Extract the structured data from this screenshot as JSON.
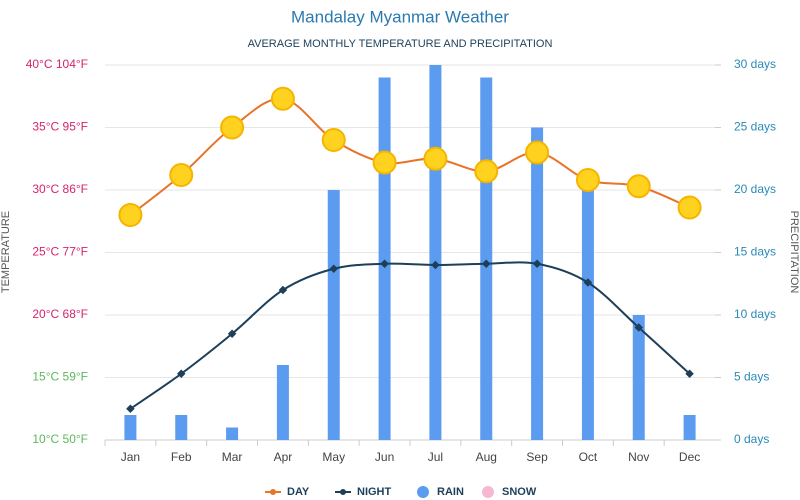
{
  "chart_data": {
    "type": "weather",
    "title": "Mandalay Myanmar Weather",
    "subtitle": "AVERAGE MONTHLY TEMPERATURE AND PRECIPITATION",
    "y_label": "TEMPERATURE",
    "y2_label": "PRECIPITATION",
    "categories": [
      "Jan",
      "Feb",
      "Mar",
      "Apr",
      "May",
      "Jun",
      "Jul",
      "Aug",
      "Sep",
      "Oct",
      "Nov",
      "Dec"
    ],
    "series": [
      {
        "name": "DAY",
        "kind": "line",
        "color": "#e8732a",
        "values": [
          28,
          31.2,
          35,
          37.3,
          34,
          32.2,
          32.5,
          31.5,
          33,
          30.8,
          30.3,
          28.6
        ]
      },
      {
        "name": "NIGHT",
        "kind": "line",
        "color": "#1d3f5a",
        "values": [
          12.5,
          15.3,
          18.5,
          22,
          23.7,
          24.1,
          24,
          24.1,
          24.1,
          22.6,
          19,
          15.3
        ]
      },
      {
        "name": "RAIN",
        "kind": "bar",
        "axis": "y2",
        "color": "#5b9cf0",
        "values": [
          2,
          2,
          1,
          6,
          20,
          29,
          30,
          29,
          25,
          21,
          10,
          2
        ]
      },
      {
        "name": "SNOW",
        "kind": "bar",
        "axis": "y2",
        "color": "#f5b8d0",
        "values": [
          0,
          0,
          0,
          0,
          0,
          0,
          0,
          0,
          0,
          0,
          0,
          0
        ]
      }
    ],
    "ylim": [
      10,
      40
    ],
    "yticks": [
      {
        "value": 10,
        "label": "10°C 50°F",
        "color": "#5cb85c"
      },
      {
        "value": 15,
        "label": "15°C 59°F",
        "color": "#5cb85c"
      },
      {
        "value": 20,
        "label": "20°C 68°F",
        "color": "#d6246e"
      },
      {
        "value": 25,
        "label": "25°C 77°F",
        "color": "#d6246e"
      },
      {
        "value": 30,
        "label": "30°C 86°F",
        "color": "#d6246e"
      },
      {
        "value": 35,
        "label": "35°C 95°F",
        "color": "#d6246e"
      },
      {
        "value": 40,
        "label": "40°C 104°F",
        "color": "#d6246e"
      }
    ],
    "y2lim": [
      0,
      30
    ],
    "y2ticks": [
      {
        "value": 0,
        "label": "0 days"
      },
      {
        "value": 5,
        "label": "5 days"
      },
      {
        "value": 10,
        "label": "10 days"
      },
      {
        "value": 15,
        "label": "15 days"
      },
      {
        "value": 20,
        "label": "20 days"
      },
      {
        "value": 25,
        "label": "25 days"
      },
      {
        "value": 30,
        "label": "30 days"
      }
    ],
    "y2_color": "#2a8ab8",
    "grid": true
  }
}
